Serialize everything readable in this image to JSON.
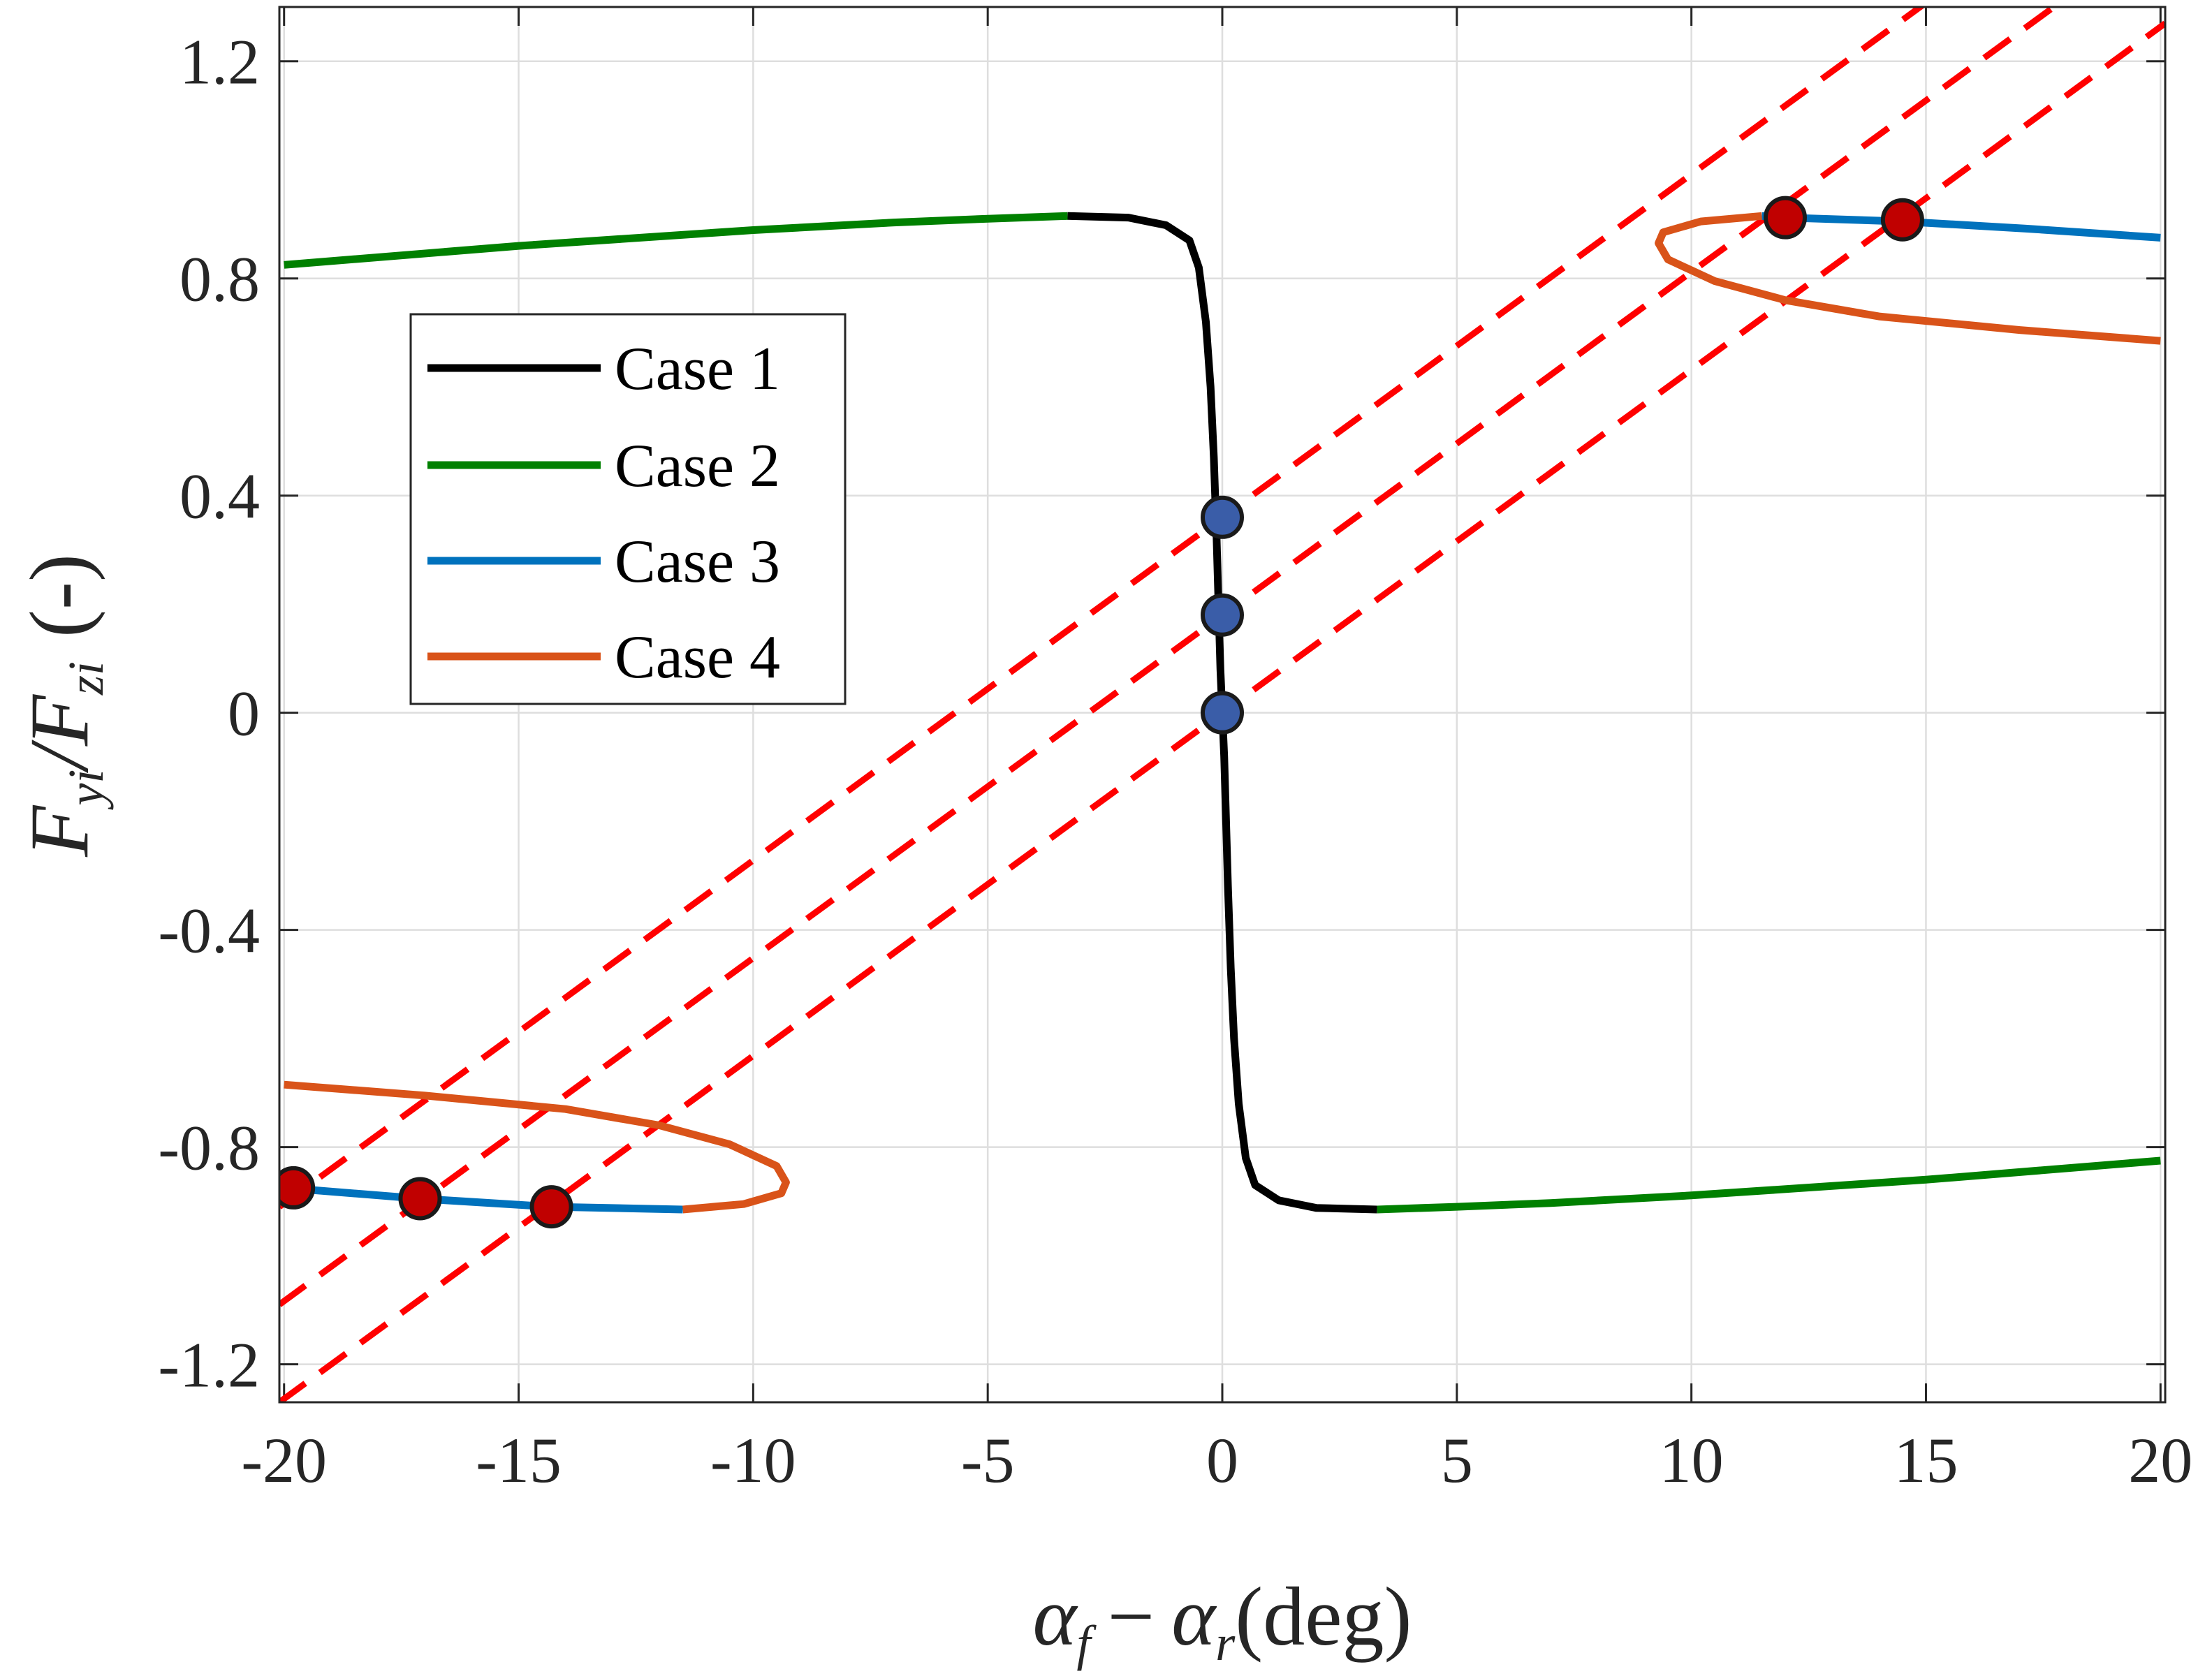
{
  "chart_data": {
    "type": "line",
    "title": "",
    "xlabel": {
      "alpha_f": "α",
      "f_sub": "f",
      "minus": "−",
      "alpha_r": "α",
      "r_sub": "r",
      "unit": "(deg)"
    },
    "ylabel": {
      "F1": "F",
      "yi_sub": "yi",
      "slash": "/",
      "F2": "F",
      "zi_sub": "zi",
      "unit": "(-)"
    },
    "xlim": [
      -20.1,
      20.1
    ],
    "ylim": [
      -1.27,
      1.3
    ],
    "xticks": [
      -20,
      -15,
      -10,
      -5,
      0,
      5,
      10,
      15,
      20
    ],
    "xtick_labels": [
      "-20",
      "-15",
      "-10",
      "-5",
      "0",
      "5",
      "10",
      "15",
      "20"
    ],
    "yticks": [
      -1.2,
      -0.8,
      -0.4,
      0,
      0.4,
      0.8,
      1.2
    ],
    "ytick_labels": [
      "-1.2",
      "-0.8",
      "-0.4",
      "0",
      "0.4",
      "0.8",
      "1.2"
    ],
    "grid": true,
    "legend_position": "upper-left",
    "legend": [
      {
        "name": "Case 1",
        "color": "#000000"
      },
      {
        "name": "Case 2",
        "color": "#008000"
      },
      {
        "name": "Case 3",
        "color": "#0072BD"
      },
      {
        "name": "Case 4",
        "color": "#D95319"
      }
    ],
    "series": [
      {
        "name": "Case 1",
        "color": "#000000",
        "x": [
          -3.3,
          -2.0,
          -1.2,
          -0.7,
          -0.5,
          -0.35,
          -0.25,
          -0.18,
          -0.12,
          -0.08,
          -0.04,
          0.0,
          0.04,
          0.08,
          0.12,
          0.18,
          0.25,
          0.35,
          0.5,
          0.7,
          1.2,
          2.0,
          3.3
        ],
        "y": [
          0.915,
          0.912,
          0.898,
          0.87,
          0.82,
          0.72,
          0.6,
          0.47,
          0.32,
          0.2,
          0.08,
          0.0,
          -0.08,
          -0.2,
          -0.32,
          -0.47,
          -0.6,
          -0.72,
          -0.82,
          -0.87,
          -0.898,
          -0.912,
          -0.915
        ]
      },
      {
        "name": "Case 2",
        "color": "#008000",
        "x": [
          -20,
          -15,
          -10,
          -7,
          -5,
          -3.3
        ],
        "y": [
          0.825,
          0.86,
          0.889,
          0.903,
          0.91,
          0.915
        ]
      },
      {
        "name": "Case 2",
        "color": "#008000",
        "x": [
          3.3,
          5,
          7,
          10,
          15,
          20
        ],
        "y": [
          -0.915,
          -0.91,
          -0.903,
          -0.889,
          -0.86,
          -0.825
        ]
      },
      {
        "name": "Case 3",
        "color": "#0072BD",
        "x": [
          -20,
          -17.1,
          -14.3,
          -11.5
        ],
        "y": [
          -0.875,
          -0.895,
          -0.91,
          -0.915
        ]
      },
      {
        "name": "Case 3",
        "color": "#0072BD",
        "x": [
          11.5,
          12.0,
          14.5,
          17.1,
          20
        ],
        "y": [
          0.915,
          0.912,
          0.905,
          0.892,
          0.875
        ]
      },
      {
        "name": "Case 4",
        "color": "#D95319",
        "x": [
          -11.5,
          -10.2,
          -9.4,
          -9.3,
          -9.5,
          -10.5,
          -12,
          -14,
          -17,
          -20
        ],
        "y": [
          -0.915,
          -0.905,
          -0.885,
          -0.865,
          -0.835,
          -0.795,
          -0.76,
          -0.73,
          -0.705,
          -0.685
        ]
      },
      {
        "name": "Case 4",
        "color": "#D95319",
        "x": [
          11.5,
          10.2,
          9.4,
          9.3,
          9.5,
          10.5,
          12,
          14,
          17,
          20
        ],
        "y": [
          0.915,
          0.905,
          0.885,
          0.865,
          0.835,
          0.795,
          0.76,
          0.73,
          0.705,
          0.685
        ]
      }
    ],
    "dashed_lines": [
      {
        "color": "#FF0000",
        "x": [
          -20.1,
          20.1
        ],
        "y": [
          -1.27,
          1.27
        ]
      },
      {
        "color": "#FF0000",
        "x": [
          -20.1,
          20.1
        ],
        "y": [
          -1.09,
          1.45
        ]
      },
      {
        "color": "#FF0000",
        "x": [
          -20.1,
          20.1
        ],
        "y": [
          -0.91,
          1.63
        ]
      }
    ],
    "markers": [
      {
        "x": 0.0,
        "y": 0.36,
        "color": "#3A5DA8"
      },
      {
        "x": 0.0,
        "y": 0.18,
        "color": "#3A5DA8"
      },
      {
        "x": 0.0,
        "y": 0.0,
        "color": "#3A5DA8"
      },
      {
        "x": -19.8,
        "y": -0.875,
        "color": "#C00000"
      },
      {
        "x": -17.1,
        "y": -0.895,
        "color": "#C00000"
      },
      {
        "x": -14.3,
        "y": -0.91,
        "color": "#C00000"
      },
      {
        "x": 12.0,
        "y": 0.912,
        "color": "#C00000"
      },
      {
        "x": 14.5,
        "y": 0.908,
        "color": "#C00000"
      }
    ]
  }
}
